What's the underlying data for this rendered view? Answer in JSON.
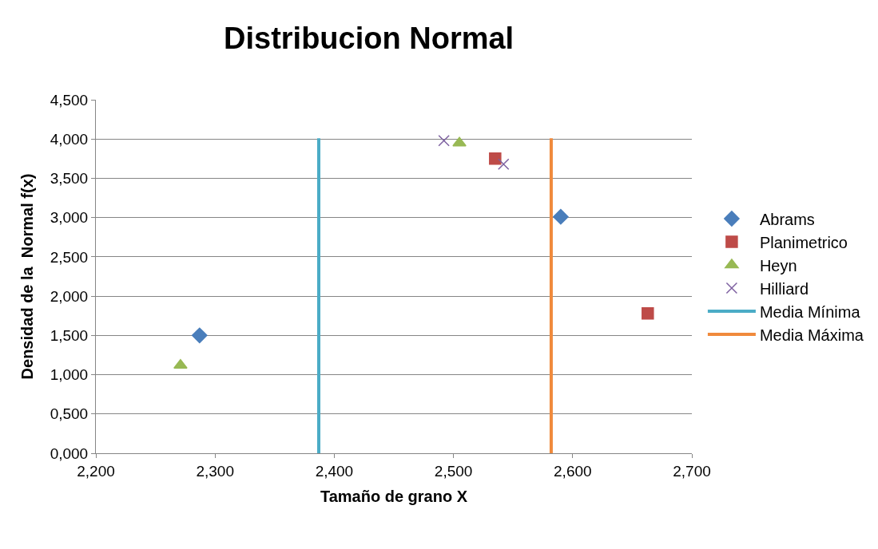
{
  "chart_data": {
    "type": "scatter",
    "title": "Distribucion Normal",
    "xlabel": "Tamaño de grano X",
    "ylabel": "Densidad de la  Normal f(x)",
    "series": [
      {
        "name": "Abrams",
        "color": "#4a7ebb",
        "marker": "diamond",
        "x": [
          2.287,
          2.59
        ],
        "values": [
          1.5,
          3.01
        ]
      },
      {
        "name": "Planimetrico",
        "color": "#be4b48",
        "marker": "square",
        "x": [
          2.535,
          2.663
        ],
        "values": [
          3.75,
          1.78
        ]
      },
      {
        "name": "Heyn",
        "color": "#98b954",
        "marker": "triangle",
        "x": [
          2.271,
          2.505
        ],
        "values": [
          1.12,
          3.95
        ]
      },
      {
        "name": "Hilliard",
        "color": "#7d60a0",
        "marker": "cross",
        "x": [
          2.492,
          2.542
        ],
        "values": [
          3.98,
          3.68
        ]
      },
      {
        "name": "Media Mínima",
        "type": "line",
        "color": "#4bacc6",
        "marker": "none",
        "x": [
          2.387,
          2.387
        ],
        "values": [
          0,
          4.01
        ]
      },
      {
        "name": "Media Máxima",
        "type": "line",
        "color": "#f08a3c",
        "marker": "none",
        "x": [
          2.582,
          2.582
        ],
        "values": [
          0,
          4.01
        ]
      }
    ],
    "xlim": [
      2.2,
      2.7
    ],
    "xticks": [
      {
        "value": 2.2,
        "label": "2,200"
      },
      {
        "value": 2.3,
        "label": "2,300"
      },
      {
        "value": 2.4,
        "label": "2,400"
      },
      {
        "value": 2.5,
        "label": "2,500"
      },
      {
        "value": 2.6,
        "label": "2,600"
      },
      {
        "value": 2.7,
        "label": "2,700"
      }
    ],
    "ylim": [
      0,
      4.5
    ],
    "yticks": [
      {
        "value": 0,
        "label": "0,000"
      },
      {
        "value": 0.5,
        "label": "0,500"
      },
      {
        "value": 1,
        "label": "1,000"
      },
      {
        "value": 1.5,
        "label": "1,500"
      },
      {
        "value": 2,
        "label": "2,000"
      },
      {
        "value": 2.5,
        "label": "2,500"
      },
      {
        "value": 3,
        "label": "3,000"
      },
      {
        "value": 3.5,
        "label": "3,500"
      },
      {
        "value": 4,
        "label": "4,000"
      },
      {
        "value": 4.5,
        "label": "4,500"
      }
    ],
    "grid": "y",
    "legend": "right"
  }
}
